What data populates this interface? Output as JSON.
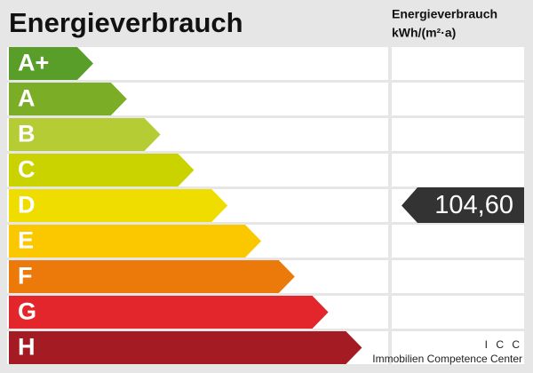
{
  "header": {
    "title": "Energieverbrauch",
    "column_title": [
      "Energieverbrauch",
      "kWh/(m²·a)"
    ]
  },
  "rows": [
    {
      "label": "A+",
      "color": "#5a9e2a"
    },
    {
      "label": "A",
      "color": "#7cad26"
    },
    {
      "label": "B",
      "color": "#b6cc34"
    },
    {
      "label": "C",
      "color": "#cad300"
    },
    {
      "label": "D",
      "color": "#f0dd00",
      "value": "104,60"
    },
    {
      "label": "E",
      "color": "#fbc800"
    },
    {
      "label": "F",
      "color": "#ec7a0b"
    },
    {
      "label": "G",
      "color": "#e2262b"
    },
    {
      "label": "H",
      "color": "#a51b24"
    }
  ],
  "footer": {
    "short": "I C C",
    "name": "Immobilien Competence Center"
  }
}
